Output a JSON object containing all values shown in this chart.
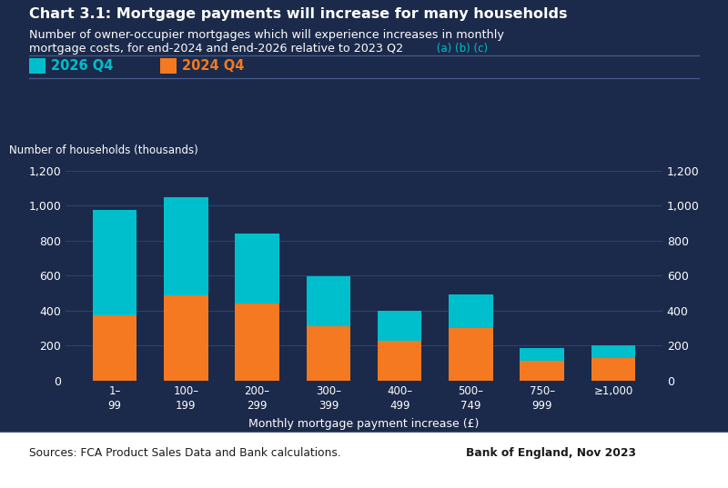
{
  "title_bold": "Chart 3.1: Mortgage payments will increase for many households",
  "subtitle_line1": "Number of owner-occupier mortgages which will experience increases in monthly",
  "subtitle_line2": "mortgage costs, for end-2024 and end-2026 relative to 2023 Q2",
  "subtitle_footnote": " (a) (b) (c)",
  "categories": [
    "1–\n99",
    "100–\n199",
    "200–\n299",
    "300–\n399",
    "400–\n499",
    "500–\n749",
    "750–\n999",
    "≥1,000"
  ],
  "orange_values": [
    375,
    490,
    440,
    310,
    230,
    300,
    115,
    130
  ],
  "cyan_additional": [
    600,
    560,
    400,
    285,
    170,
    195,
    70,
    70
  ],
  "color_orange": "#F47920",
  "color_cyan": "#00BFCC",
  "ylabel": "Number of households (thousands)",
  "xlabel": "Monthly mortgage payment increase (£)",
  "ylim": [
    0,
    1200
  ],
  "yticks": [
    0,
    200,
    400,
    600,
    800,
    1000,
    1200
  ],
  "legend_2026": "2026 Q4",
  "legend_2024": "2024 Q4",
  "bg_color": "#1b2a4a",
  "text_color": "#ffffff",
  "grid_color": "#2e4070",
  "source_text": "Sources: FCA Product Sales Data and Bank calculations.",
  "publisher_text": "Bank of England, Nov 2023",
  "footnote_color": "#00BFCC",
  "separator_color": "#4a5a8a",
  "white_bg": "#ffffff",
  "dark_text": "#1a1a1a"
}
